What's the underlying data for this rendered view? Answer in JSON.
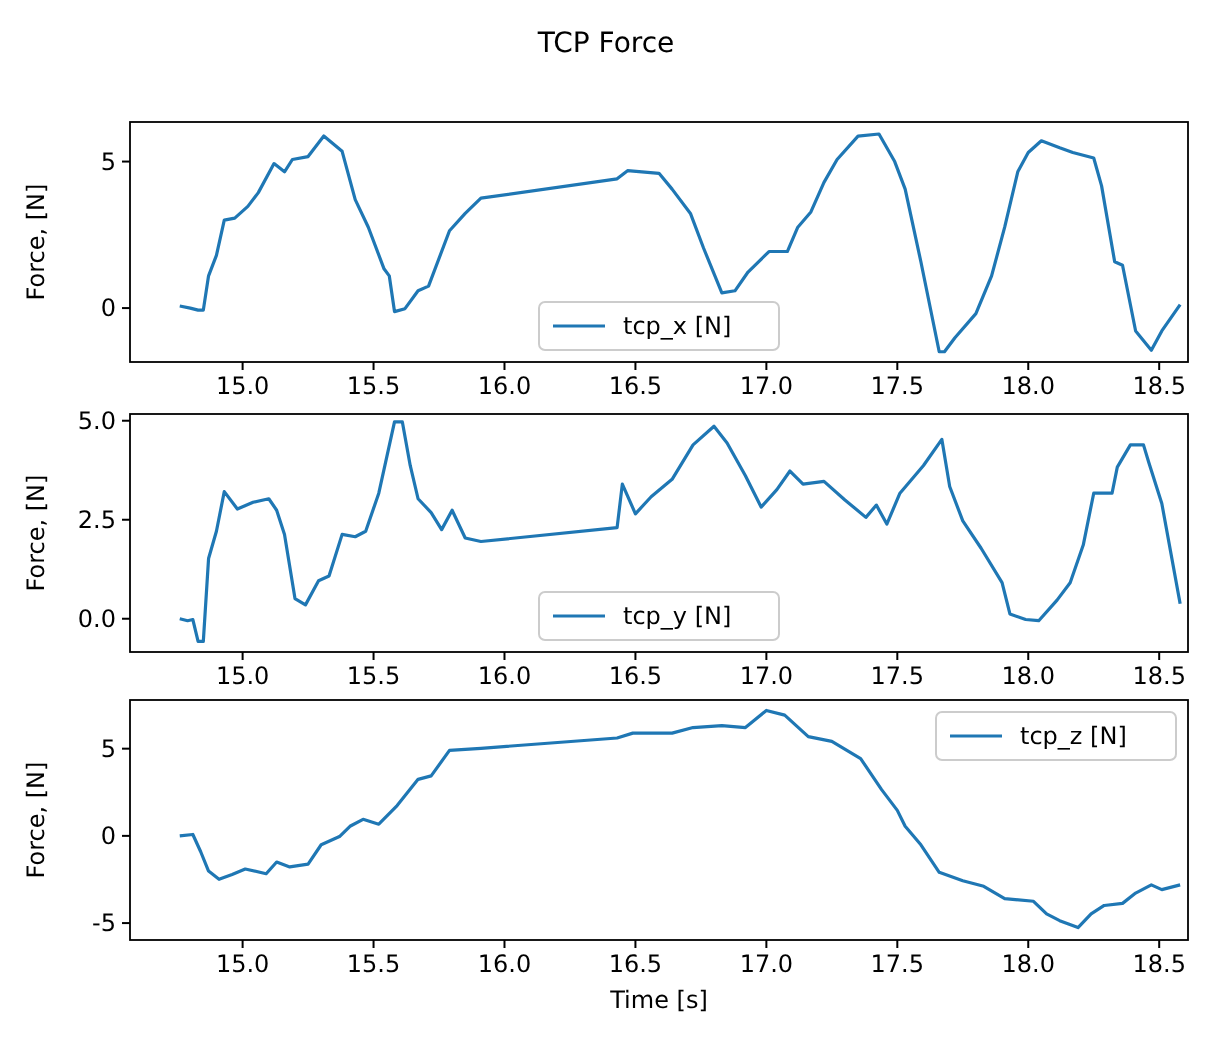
{
  "chart_data": [
    {
      "type": "line",
      "title": "TCP Force",
      "ylabel": "Force, [N]",
      "legend": "bottom",
      "xlim": [
        14.57,
        18.61
      ],
      "ylim": [
        -1.84,
        6.35
      ],
      "xticks": [
        {
          "value": 15,
          "label": "15.0"
        },
        {
          "value": 15.5,
          "label": "15.5"
        },
        {
          "value": 16,
          "label": "16.0"
        },
        {
          "value": 16.5,
          "label": "16.5"
        },
        {
          "value": 17,
          "label": "17.0"
        },
        {
          "value": 17.5,
          "label": "17.5"
        },
        {
          "value": 18,
          "label": "18.0"
        },
        {
          "value": 18.5,
          "label": "18.5"
        }
      ],
      "yticks": [
        0,
        5
      ],
      "series": [
        {
          "name": "tcp_x [N]",
          "color": "#1f77b4",
          "x": [
            14.76,
            14.8,
            14.83,
            14.85,
            14.87,
            14.9,
            14.93,
            14.97,
            15.02,
            15.06,
            15.12,
            15.16,
            15.19,
            15.25,
            15.31,
            15.38,
            15.43,
            15.48,
            15.54,
            15.56,
            15.58,
            15.62,
            15.67,
            15.71,
            15.79,
            15.85,
            15.91,
            16.43,
            16.47,
            16.59,
            16.64,
            16.71,
            16.76,
            16.83,
            16.88,
            16.93,
            17.01,
            17.08,
            17.12,
            17.17,
            17.22,
            17.27,
            17.35,
            17.43,
            17.49,
            17.53,
            17.59,
            17.66,
            17.68,
            17.72,
            17.8,
            17.86,
            17.91,
            17.96,
            18.0,
            18.05,
            18.12,
            18.17,
            18.25,
            18.28,
            18.33,
            18.36,
            18.41,
            18.47,
            18.51,
            18.58
          ],
          "values": [
            0.07,
            0,
            -0.07,
            -0.07,
            1.1,
            1.8,
            3.0,
            3.07,
            3.47,
            3.94,
            4.93,
            4.65,
            5.07,
            5.17,
            5.87,
            5.35,
            3.7,
            2.76,
            1.34,
            1.1,
            -0.12,
            -0.02,
            0.59,
            0.75,
            2.64,
            3.23,
            3.75,
            4.41,
            4.69,
            4.6,
            4.06,
            3.23,
            2.05,
            0.52,
            0.59,
            1.23,
            1.93,
            1.93,
            2.76,
            3.28,
            4.29,
            5.07,
            5.87,
            5.94,
            5.0,
            4.06,
            1.58,
            -1.49,
            -1.49,
            -1.01,
            -0.19,
            1.1,
            2.76,
            4.65,
            5.31,
            5.71,
            5.47,
            5.31,
            5.12,
            4.17,
            1.58,
            1.46,
            -0.78,
            -1.44,
            -0.78,
            0.12
          ]
        }
      ]
    },
    {
      "type": "line",
      "ylabel": "Force, [N]",
      "legend": "bottom",
      "xlim": [
        14.57,
        18.61
      ],
      "ylim": [
        -0.84,
        5.17
      ],
      "xticks": [
        {
          "value": 15,
          "label": "15.0"
        },
        {
          "value": 15.5,
          "label": "15.5"
        },
        {
          "value": 16,
          "label": "16.0"
        },
        {
          "value": 16.5,
          "label": "16.5"
        },
        {
          "value": 17,
          "label": "17.0"
        },
        {
          "value": 17.5,
          "label": "17.5"
        },
        {
          "value": 18,
          "label": "18.0"
        },
        {
          "value": 18.5,
          "label": "18.5"
        }
      ],
      "yticks": [
        {
          "value": 0,
          "label": "0.0"
        },
        {
          "value": 2.5,
          "label": "2.5"
        },
        {
          "value": 5,
          "label": "5.0"
        }
      ],
      "series": [
        {
          "name": "tcp_y [N]",
          "color": "#1f77b4",
          "x": [
            14.76,
            14.79,
            14.81,
            14.83,
            14.85,
            14.87,
            14.9,
            14.93,
            14.98,
            15.04,
            15.1,
            15.13,
            15.16,
            15.2,
            15.24,
            15.29,
            15.33,
            15.38,
            15.43,
            15.47,
            15.52,
            15.58,
            15.61,
            15.64,
            15.67,
            15.72,
            15.76,
            15.8,
            15.85,
            15.91,
            16.43,
            16.45,
            16.5,
            16.56,
            16.64,
            16.72,
            16.8,
            16.85,
            16.92,
            16.98,
            17.04,
            17.09,
            17.14,
            17.22,
            17.3,
            17.38,
            17.42,
            17.46,
            17.51,
            17.6,
            17.67,
            17.7,
            17.75,
            17.82,
            17.9,
            17.93,
            17.99,
            18.04,
            18.11,
            18.16,
            18.21,
            18.25,
            18.32,
            18.34,
            18.39,
            18.44,
            18.46,
            18.51,
            18.58
          ],
          "values": [
            0,
            -0.05,
            -0.02,
            -0.57,
            -0.57,
            1.52,
            2.21,
            3.21,
            2.77,
            2.94,
            3.03,
            2.74,
            2.13,
            0.51,
            0.35,
            0.96,
            1.08,
            2.13,
            2.07,
            2.21,
            3.17,
            4.97,
            4.97,
            3.87,
            3.03,
            2.68,
            2.25,
            2.74,
            2.04,
            1.95,
            2.3,
            3.4,
            2.65,
            3.08,
            3.52,
            4.39,
            4.86,
            4.44,
            3.61,
            2.82,
            3.26,
            3.73,
            3.4,
            3.47,
            3.0,
            2.56,
            2.87,
            2.39,
            3.17,
            3.87,
            4.53,
            3.34,
            2.47,
            1.78,
            0.91,
            0.12,
            -0.02,
            -0.05,
            0.47,
            0.91,
            1.86,
            3.17,
            3.17,
            3.83,
            4.39,
            4.39,
            3.95,
            2.91,
            0.38
          ]
        }
      ]
    },
    {
      "type": "line",
      "xlabel": "Time [s]",
      "ylabel": "Force, [N]",
      "legend": "top right",
      "xlim": [
        14.57,
        18.61
      ],
      "ylim": [
        -5.97,
        7.79
      ],
      "xticks": [
        {
          "value": 15,
          "label": "15.0"
        },
        {
          "value": 15.5,
          "label": "15.5"
        },
        {
          "value": 16,
          "label": "16.0"
        },
        {
          "value": 16.5,
          "label": "16.5"
        },
        {
          "value": 17,
          "label": "17.0"
        },
        {
          "value": 17.5,
          "label": "17.5"
        },
        {
          "value": 18,
          "label": "18.0"
        },
        {
          "value": 18.5,
          "label": "18.5"
        }
      ],
      "yticks": [
        -5,
        0,
        5
      ],
      "series": [
        {
          "name": "tcp_z [N]",
          "color": "#1f77b4",
          "x": [
            14.76,
            14.81,
            14.84,
            14.87,
            14.91,
            14.96,
            15.01,
            15.09,
            15.13,
            15.18,
            15.25,
            15.3,
            15.37,
            15.41,
            15.46,
            15.52,
            15.59,
            15.67,
            15.72,
            15.79,
            15.91,
            16.43,
            16.49,
            16.64,
            16.72,
            16.83,
            16.92,
            17.0,
            17.07,
            17.16,
            17.25,
            17.36,
            17.44,
            17.5,
            17.53,
            17.59,
            17.66,
            17.75,
            17.83,
            17.91,
            18.02,
            18.07,
            18.12,
            18.19,
            18.24,
            18.29,
            18.36,
            18.41,
            18.47,
            18.51,
            18.58
          ],
          "values": [
            0,
            0.08,
            -0.91,
            -2.02,
            -2.49,
            -2.21,
            -1.9,
            -2.17,
            -1.5,
            -1.78,
            -1.62,
            -0.51,
            -0.04,
            0.55,
            0.95,
            0.67,
            1.74,
            3.24,
            3.44,
            4.9,
            5.02,
            5.61,
            5.89,
            5.89,
            6.21,
            6.32,
            6.21,
            7.19,
            6.92,
            5.69,
            5.42,
            4.43,
            2.65,
            1.46,
            0.55,
            -0.51,
            -2.09,
            -2.57,
            -2.89,
            -3.6,
            -3.75,
            -4.47,
            -4.86,
            -5.26,
            -4.47,
            -3.99,
            -3.87,
            -3.28,
            -2.81,
            -3.08,
            -2.81
          ]
        }
      ]
    }
  ]
}
